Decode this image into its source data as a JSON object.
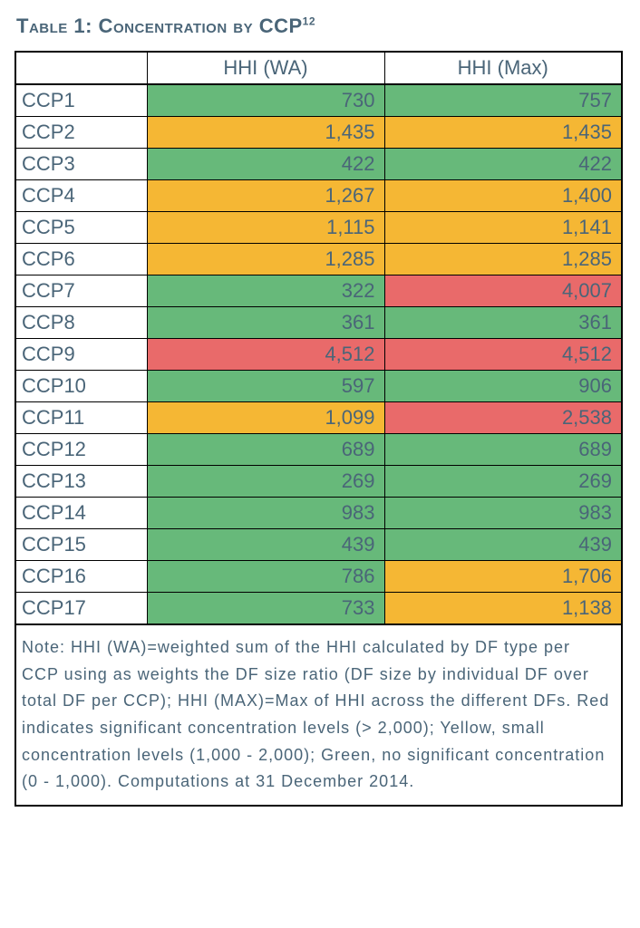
{
  "title_main": "Table 1: Concentration by CCP",
  "title_sup": "12",
  "columns": {
    "blank": "",
    "c1": "HHI (WA)",
    "c2": "HHI (Max)"
  },
  "colors": {
    "green": "#67b97a",
    "yellow": "#f5b734",
    "red": "#e96a6a",
    "white": "#ffffff",
    "text": "#4a6578"
  },
  "rows": [
    {
      "label": "CCP1",
      "wa": "730",
      "wa_c": "green",
      "mx": "757",
      "mx_c": "green"
    },
    {
      "label": "CCP2",
      "wa": "1,435",
      "wa_c": "yellow",
      "mx": "1,435",
      "mx_c": "yellow"
    },
    {
      "label": "CCP3",
      "wa": "422",
      "wa_c": "green",
      "mx": "422",
      "mx_c": "green"
    },
    {
      "label": "CCP4",
      "wa": "1,267",
      "wa_c": "yellow",
      "mx": "1,400",
      "mx_c": "yellow"
    },
    {
      "label": "CCP5",
      "wa": "1,115",
      "wa_c": "yellow",
      "mx": "1,141",
      "mx_c": "yellow"
    },
    {
      "label": "CCP6",
      "wa": "1,285",
      "wa_c": "yellow",
      "mx": "1,285",
      "mx_c": "yellow"
    },
    {
      "label": "CCP7",
      "wa": "322",
      "wa_c": "green",
      "mx": "4,007",
      "mx_c": "red"
    },
    {
      "label": "CCP8",
      "wa": "361",
      "wa_c": "green",
      "mx": "361",
      "mx_c": "green"
    },
    {
      "label": "CCP9",
      "wa": "4,512",
      "wa_c": "red",
      "mx": "4,512",
      "mx_c": "red"
    },
    {
      "label": "CCP10",
      "wa": "597",
      "wa_c": "green",
      "mx": "906",
      "mx_c": "green"
    },
    {
      "label": "CCP11",
      "wa": "1,099",
      "wa_c": "yellow",
      "mx": "2,538",
      "mx_c": "red"
    },
    {
      "label": "CCP12",
      "wa": "689",
      "wa_c": "green",
      "mx": "689",
      "mx_c": "green"
    },
    {
      "label": "CCP13",
      "wa": "269",
      "wa_c": "green",
      "mx": "269",
      "mx_c": "green"
    },
    {
      "label": "CCP14",
      "wa": "983",
      "wa_c": "green",
      "mx": "983",
      "mx_c": "green"
    },
    {
      "label": "CCP15",
      "wa": "439",
      "wa_c": "green",
      "mx": "439",
      "mx_c": "green"
    },
    {
      "label": "CCP16",
      "wa": "786",
      "wa_c": "green",
      "mx": "1,706",
      "mx_c": "yellow"
    },
    {
      "label": "CCP17",
      "wa": "733",
      "wa_c": "green",
      "mx": "1,138",
      "mx_c": "yellow"
    }
  ],
  "note": "Note: HHI (WA)=weighted sum of the HHI calculated by DF type per CCP using as weights the DF size ratio (DF size by individual DF over total DF per CCP); HHI (MAX)=Max of HHI across the different DFs. Red indicates significant concentration levels (> 2,000); Yellow, small concentration levels (1,000 - 2,000); Green, no significant concentration (0 - 1,000). Computations at 31 December 2014."
}
